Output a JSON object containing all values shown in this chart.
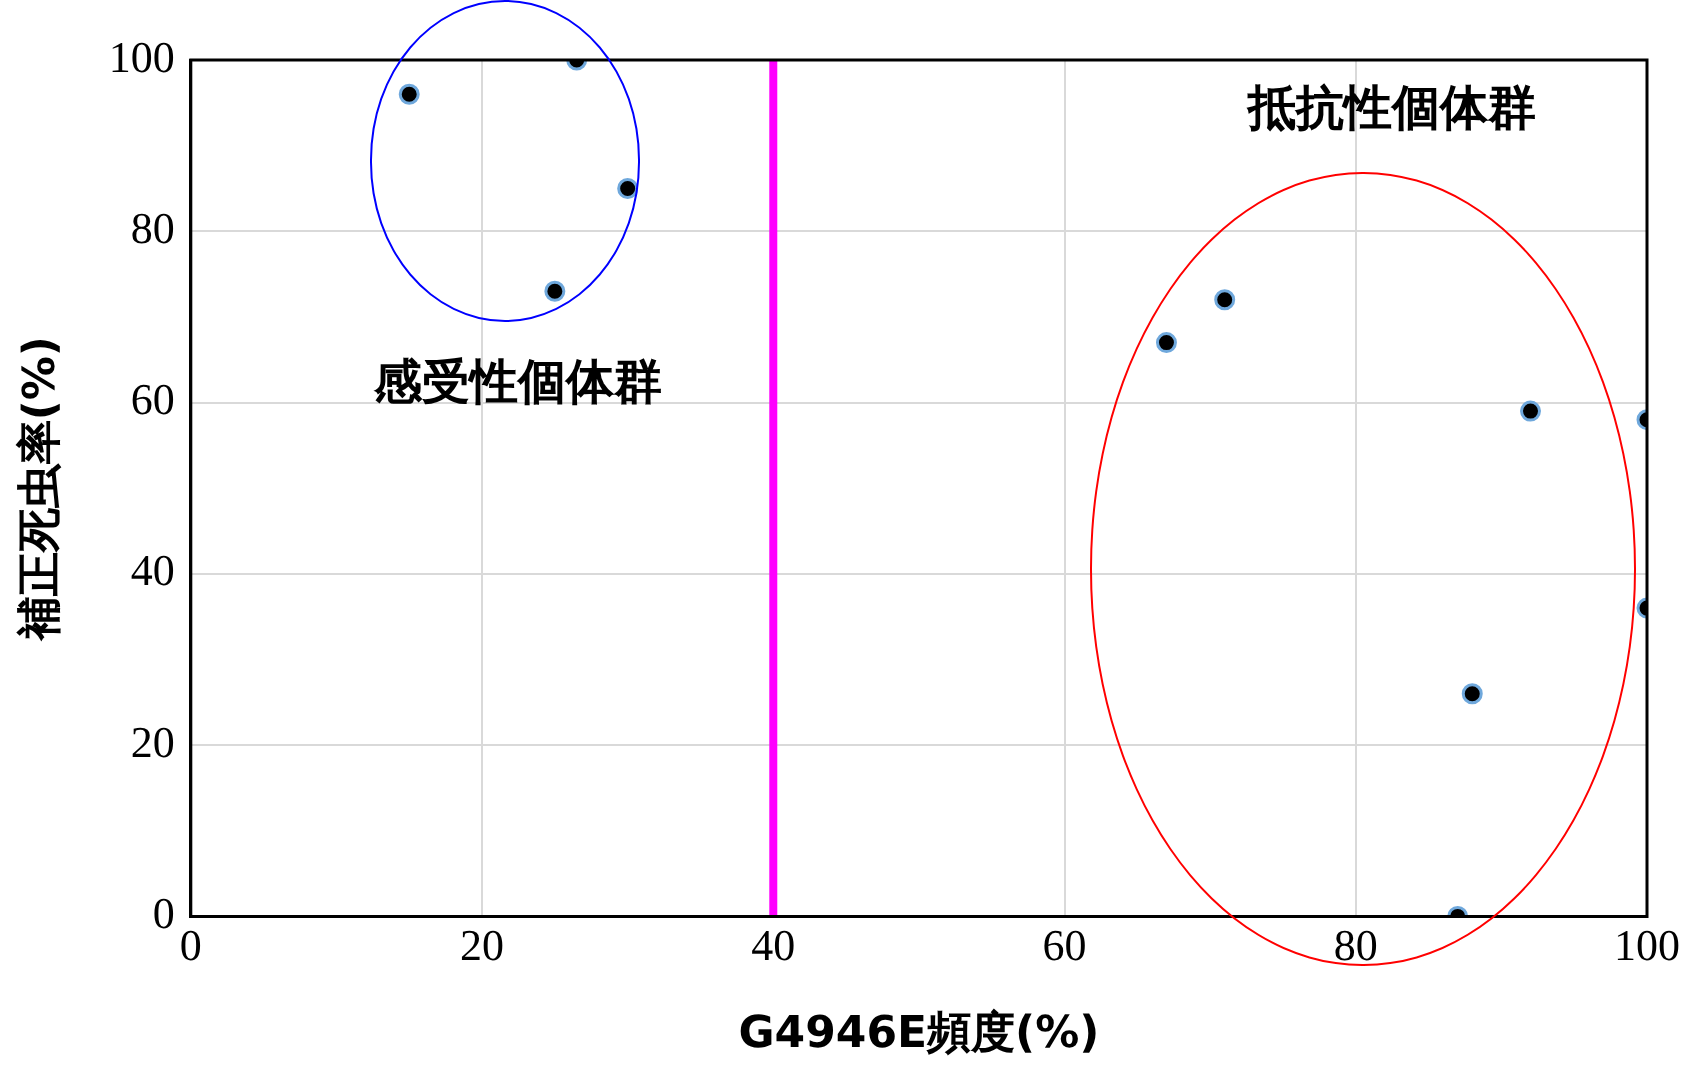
{
  "chart_data": {
    "type": "scatter",
    "xlabel": "G4946E頻度(%)",
    "ylabel": "補正死虫率(%)",
    "series": [
      {
        "color": "#000000",
        "x": [
          15,
          26.5,
          30,
          25,
          67,
          71,
          92,
          100,
          100,
          88,
          87
        ],
        "values": [
          96,
          100,
          85,
          73,
          67,
          72,
          59,
          58,
          36,
          26,
          0
        ]
      }
    ],
    "xlim": [
      0,
      100
    ],
    "xticks": [
      0,
      20,
      40,
      60,
      80,
      100
    ],
    "ylim": [
      0,
      100
    ],
    "yticks": [
      0,
      20,
      40,
      60,
      80,
      100
    ],
    "grid": true,
    "legend": false,
    "marker": "circle",
    "ref_lines": [
      {
        "axis": "x",
        "value": 40,
        "color": "#ff00ff"
      }
    ],
    "annotations": [
      "感受性個体群",
      "抵抗性個体群"
    ]
  }
}
